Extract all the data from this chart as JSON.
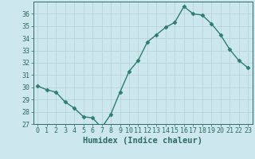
{
  "x": [
    0,
    1,
    2,
    3,
    4,
    5,
    6,
    7,
    8,
    9,
    10,
    11,
    12,
    13,
    14,
    15,
    16,
    17,
    18,
    19,
    20,
    21,
    22,
    23
  ],
  "y": [
    30.1,
    29.8,
    29.6,
    28.8,
    28.3,
    27.6,
    27.5,
    26.7,
    27.8,
    29.6,
    31.3,
    32.2,
    33.7,
    34.3,
    34.9,
    35.3,
    36.6,
    36.0,
    35.9,
    35.2,
    34.3,
    33.1,
    32.2,
    31.6
  ],
  "line_color": "#2e7d6e",
  "marker": "D",
  "markersize": 2.5,
  "linewidth": 1.0,
  "background_color": "#cce8ee",
  "grid_color": "#b8d4d8",
  "xlabel": "Humidex (Indice chaleur)",
  "ylim": [
    27,
    37
  ],
  "xlim": [
    -0.5,
    23.5
  ],
  "yticks": [
    27,
    28,
    29,
    30,
    31,
    32,
    33,
    34,
    35,
    36
  ],
  "xticks": [
    0,
    1,
    2,
    3,
    4,
    5,
    6,
    7,
    8,
    9,
    10,
    11,
    12,
    13,
    14,
    15,
    16,
    17,
    18,
    19,
    20,
    21,
    22,
    23
  ],
  "tick_color": "#2e6b5e",
  "xlabel_fontsize": 7.5,
  "tick_fontsize": 6.0,
  "spine_color": "#2e6b5e"
}
